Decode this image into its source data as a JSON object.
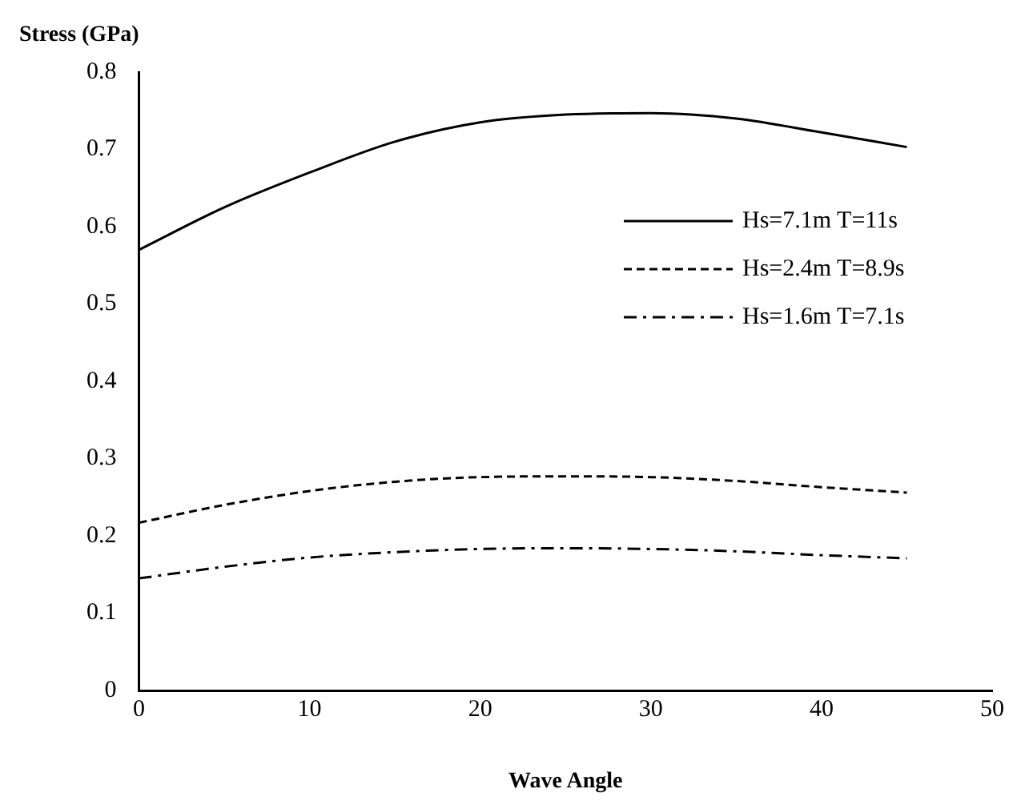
{
  "chart_data": {
    "type": "line",
    "xlabel": "Wave Angle",
    "ylabel": "Stress (GPa)",
    "x": [
      0,
      5,
      10,
      15,
      20,
      25,
      30,
      35,
      40,
      45
    ],
    "series": [
      {
        "name": "Hs=7.1m T=11s",
        "color": "#000000",
        "line_style": "solid",
        "values": [
          0.57,
          0.625,
          0.67,
          0.71,
          0.735,
          0.745,
          0.747,
          0.74,
          0.722,
          0.703
        ]
      },
      {
        "name": "Hs=2.4m T=8.9s",
        "color": "#000000",
        "line_style": "dashed",
        "values": [
          0.217,
          0.24,
          0.258,
          0.27,
          0.276,
          0.277,
          0.276,
          0.271,
          0.263,
          0.256
        ]
      },
      {
        "name": "Hs=1.6m T=7.1s",
        "color": "#000000",
        "line_style": "dashdot",
        "values": [
          0.145,
          0.16,
          0.172,
          0.179,
          0.183,
          0.184,
          0.183,
          0.18,
          0.175,
          0.171
        ]
      }
    ],
    "xlim": [
      0,
      50
    ],
    "xticks": [
      0,
      10,
      20,
      30,
      40,
      50
    ],
    "ylim": [
      0,
      0.8
    ],
    "yticks": [
      0,
      0.1,
      0.2,
      0.3,
      0.4,
      0.5,
      0.6,
      0.7,
      0.8
    ],
    "grid": false,
    "legend": "right",
    "marker": "none"
  }
}
